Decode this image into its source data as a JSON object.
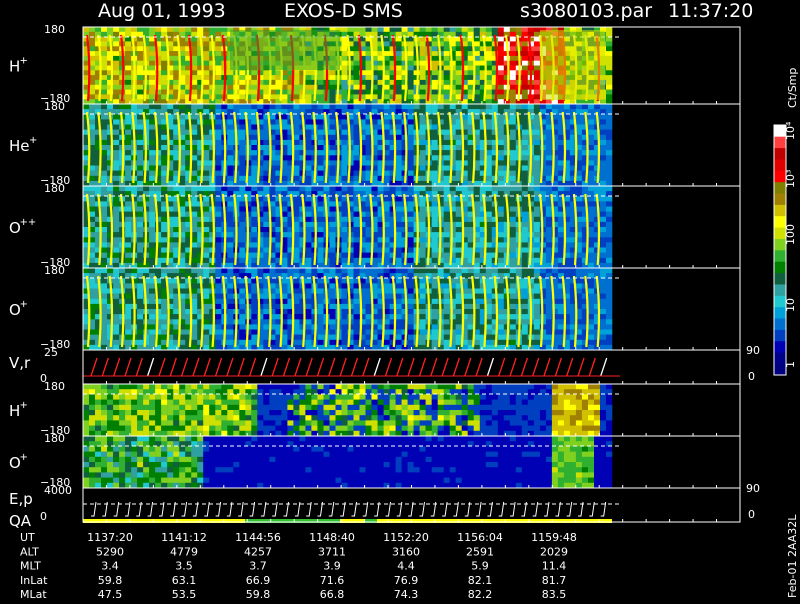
{
  "header": {
    "date": "Aug 01, 1993",
    "instrument": "EXOS-D SMS",
    "file": "s3080103.par",
    "time": "11:37:20"
  },
  "colorbar": {
    "unit": "Ct/Smp",
    "labels": [
      "1",
      "10",
      "100",
      "10³",
      "10⁴"
    ],
    "colors": [
      "#000080",
      "#00008b",
      "#0000b4",
      "#0040c0",
      "#0070d0",
      "#00a0d8",
      "#20c8d0",
      "#30a0a0",
      "#106040",
      "#008000",
      "#30b030",
      "#80d020",
      "#d0e000",
      "#ffff00",
      "#d0c000",
      "#a08000",
      "#808000",
      "#ff0000",
      "#e00000",
      "#c00000",
      "#ff4040",
      "#ffffff"
    ]
  },
  "panels": [
    {
      "id": "h_plus_pitch",
      "label": "H",
      "sup": "+",
      "ymax": "180",
      "ymin": "−180"
    },
    {
      "id": "he_plus_pitch",
      "label": "He",
      "sup": "+",
      "ymax": "180",
      "ymin": "−180"
    },
    {
      "id": "o_pp_pitch",
      "label": "O",
      "sup": "++",
      "ymax": "180",
      "ymin": "−180"
    },
    {
      "id": "o_plus_pitch",
      "label": "O",
      "sup": "+",
      "ymax": "180",
      "ymin": "−180"
    },
    {
      "id": "v_r",
      "label": "V,r",
      "sup": "",
      "ymax": "25",
      "ymin": "0",
      "rmax": "90",
      "rmin": "0"
    },
    {
      "id": "h_plus_low",
      "label": "H",
      "sup": "+",
      "ymax": "180",
      "ymin": "−180"
    },
    {
      "id": "o_plus_low",
      "label": "O",
      "sup": "+",
      "ymax": "180",
      "ymin": "−180"
    },
    {
      "id": "ep_qa",
      "label": "E,p",
      "label2": "QA",
      "ymax": "4000",
      "ymin": "0",
      "rmax": "90",
      "rmin": "0"
    }
  ],
  "ephemeris": {
    "rows": [
      {
        "name": "UT",
        "values": [
          "1137:20",
          "1141:12",
          "1144:56",
          "1148:40",
          "1152:20",
          "1156:04",
          "1159:48"
        ]
      },
      {
        "name": "ALT",
        "values": [
          "5290",
          "4779",
          "4257",
          "3711",
          "3160",
          "2591",
          "2029"
        ]
      },
      {
        "name": "MLT",
        "values": [
          "3.4",
          "3.5",
          "3.7",
          "3.9",
          "4.4",
          "5.9",
          "11.4"
        ]
      },
      {
        "name": "InLat",
        "values": [
          "59.8",
          "63.1",
          "66.9",
          "71.6",
          "76.9",
          "82.1",
          "81.7"
        ]
      },
      {
        "name": "MLat",
        "values": [
          "47.5",
          "53.5",
          "59.8",
          "66.8",
          "74.3",
          "82.2",
          "83.5"
        ]
      }
    ]
  },
  "footer": {
    "stamp": "Feb-01 2AA32L"
  },
  "chart_data": {
    "type": "heatmap",
    "x_axis": "UT",
    "x_ticks": [
      "1137:20",
      "1141:12",
      "1144:56",
      "1148:40",
      "1152:20",
      "1156:04",
      "1159:48"
    ],
    "color_scale": "log",
    "color_range": [
      1,
      10000
    ],
    "color_unit": "Ct/Smp",
    "series": [
      {
        "name": "H+",
        "y_range": [
          -180,
          180
        ]
      },
      {
        "name": "He+",
        "y_range": [
          -180,
          180
        ]
      },
      {
        "name": "O++",
        "y_range": [
          -180,
          180
        ]
      },
      {
        "name": "O+",
        "y_range": [
          -180,
          180
        ]
      },
      {
        "name": "V,r",
        "y_range": [
          0,
          25
        ],
        "y2_range": [
          0,
          90
        ]
      },
      {
        "name": "H+",
        "y_range": [
          -180,
          180
        ]
      },
      {
        "name": "O+",
        "y_range": [
          -180,
          180
        ]
      },
      {
        "name": "E,p",
        "y_range": [
          0,
          4000
        ],
        "y2_range": [
          0,
          90
        ]
      }
    ]
  }
}
